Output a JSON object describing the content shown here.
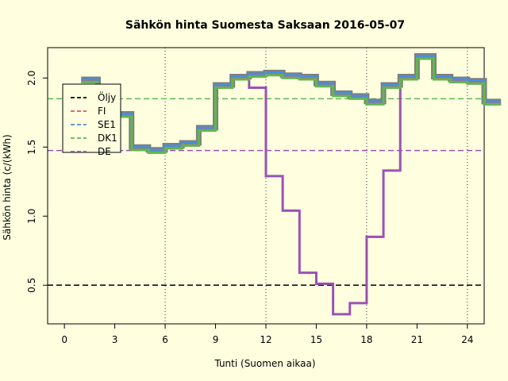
{
  "chart_data": {
    "type": "line",
    "title": "Sähkön hinta Suomesta Saksaan 2016-05-07",
    "xlabel": "Tunti (Suomen aikaa)",
    "ylabel": "Sähkön hinta (c/(kWh)",
    "xlim": [
      -1,
      25
    ],
    "ylim": [
      0.22,
      2.22
    ],
    "xticks": [
      0,
      3,
      6,
      9,
      12,
      15,
      18,
      21,
      24
    ],
    "yticks": [
      0.5,
      1.0,
      1.5,
      2.0
    ],
    "ytick_labels": [
      "0.5",
      "1.0",
      "1.5",
      "2.0"
    ],
    "vlines_x": [
      6,
      12,
      18,
      24
    ],
    "legend_position": "top-left",
    "step": true,
    "x": [
      1,
      2,
      3,
      4,
      5,
      6,
      7,
      8,
      9,
      10,
      11,
      12,
      13,
      14,
      15,
      16,
      17,
      18,
      19,
      20,
      21,
      22,
      23,
      24,
      25
    ],
    "series": [
      {
        "name": "Öljy",
        "kind": "hline",
        "value": 0.5,
        "color": "#000000",
        "dash": true
      },
      {
        "name": "FI",
        "color": "#DF536B",
        "width": 3,
        "values": [
          1.98,
          1.87,
          1.73,
          1.49,
          1.47,
          1.5,
          1.52,
          1.63,
          1.94,
          2.0,
          2.02,
          2.03,
          2.01,
          2.0,
          1.95,
          1.88,
          1.86,
          1.82,
          1.94,
          2.0,
          2.15,
          2.0,
          1.98,
          1.97,
          1.82
        ]
      },
      {
        "name": "SE1",
        "color": "#4A8FD8",
        "width": 3,
        "values": [
          1.99,
          1.88,
          1.74,
          1.5,
          1.48,
          1.51,
          1.53,
          1.64,
          1.95,
          2.01,
          2.03,
          2.04,
          2.02,
          2.01,
          1.96,
          1.89,
          1.87,
          1.83,
          1.95,
          2.01,
          2.16,
          2.01,
          1.99,
          1.98,
          1.83
        ]
      },
      {
        "name": "DK1",
        "color": "#61B84E",
        "width": 3,
        "values": [
          1.97,
          1.86,
          1.72,
          1.48,
          1.46,
          1.49,
          1.51,
          1.62,
          1.93,
          1.99,
          2.01,
          2.02,
          2.0,
          1.99,
          1.94,
          1.87,
          1.85,
          1.81,
          1.93,
          1.99,
          2.14,
          1.99,
          1.97,
          1.96,
          1.81
        ]
      },
      {
        "name": "DE",
        "color": "#9A52B5",
        "width": 3,
        "values": [
          1.97,
          1.86,
          1.72,
          1.48,
          1.46,
          1.49,
          1.51,
          1.62,
          1.93,
          1.99,
          1.93,
          1.29,
          1.04,
          0.59,
          0.51,
          0.29,
          0.37,
          0.85,
          1.33,
          1.99,
          2.14,
          1.99,
          1.97,
          1.96,
          1.81
        ]
      }
    ],
    "hlines": [
      {
        "series": "Öljy",
        "value": 0.5,
        "color": "#000000"
      },
      {
        "series": "DK1",
        "value": 1.85,
        "color": "#61B84E"
      },
      {
        "series": "DE",
        "value": 1.475,
        "color": "#9A52B5"
      }
    ]
  }
}
